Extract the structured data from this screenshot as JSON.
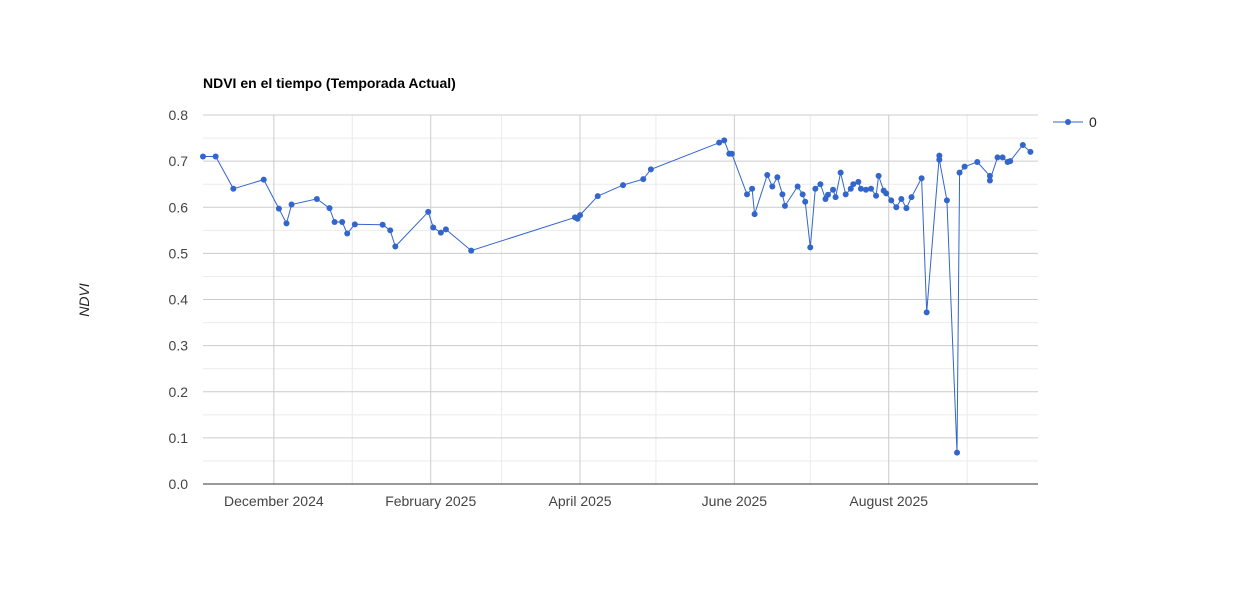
{
  "chart_data": {
    "type": "line",
    "title": "NDVI en el tiempo (Temporada Actual)",
    "xlabel": "",
    "ylabel": "NDVI",
    "ylim": [
      0,
      0.8
    ],
    "yticks": [
      "0.0",
      "0.1",
      "0.2",
      "0.3",
      "0.4",
      "0.5",
      "0.6",
      "0.7",
      "0.8"
    ],
    "xlim": [
      "2024-11-03",
      "2025-09-29"
    ],
    "xtick_labels": [
      {
        "date": "2024-12-01",
        "label": "December 2024"
      },
      {
        "date": "2025-02-01",
        "label": "February 2025"
      },
      {
        "date": "2025-04-01",
        "label": "April 2025"
      },
      {
        "date": "2025-06-01",
        "label": "June 2025"
      },
      {
        "date": "2025-08-01",
        "label": "August 2025"
      }
    ],
    "grid": true,
    "legend_position": "right",
    "color": "#3366cc",
    "series": [
      {
        "name": "0",
        "points": [
          [
            "2024-11-03",
            0.71
          ],
          [
            "2024-11-08",
            0.71
          ],
          [
            "2024-11-15",
            0.64
          ],
          [
            "2024-11-27",
            0.66
          ],
          [
            "2024-12-03",
            0.597
          ],
          [
            "2024-12-06",
            0.565
          ],
          [
            "2024-12-08",
            0.606
          ],
          [
            "2024-12-18",
            0.618
          ],
          [
            "2024-12-23",
            0.598
          ],
          [
            "2024-12-25",
            0.568
          ],
          [
            "2024-12-28",
            0.568
          ],
          [
            "2024-12-30",
            0.543
          ],
          [
            "2025-01-02",
            0.563
          ],
          [
            "2025-01-13",
            0.562
          ],
          [
            "2025-01-16",
            0.55
          ],
          [
            "2025-01-18",
            0.515
          ],
          [
            "2025-01-31",
            0.59
          ],
          [
            "2025-02-02",
            0.556
          ],
          [
            "2025-02-05",
            0.545
          ],
          [
            "2025-02-07",
            0.552
          ],
          [
            "2025-02-17",
            0.506
          ],
          [
            "2025-03-30",
            0.578
          ],
          [
            "2025-03-31",
            0.575
          ],
          [
            "2025-04-01",
            0.583
          ],
          [
            "2025-04-08",
            0.624
          ],
          [
            "2025-04-18",
            0.648
          ],
          [
            "2025-04-26",
            0.661
          ],
          [
            "2025-04-29",
            0.682
          ],
          [
            "2025-05-26",
            0.74
          ],
          [
            "2025-05-28",
            0.745
          ],
          [
            "2025-05-30",
            0.716
          ],
          [
            "2025-05-31",
            0.716
          ],
          [
            "2025-06-06",
            0.628
          ],
          [
            "2025-06-08",
            0.64
          ],
          [
            "2025-06-09",
            0.585
          ],
          [
            "2025-06-14",
            0.67
          ],
          [
            "2025-06-16",
            0.645
          ],
          [
            "2025-06-18",
            0.665
          ],
          [
            "2025-06-20",
            0.628
          ],
          [
            "2025-06-21",
            0.603
          ],
          [
            "2025-06-26",
            0.645
          ],
          [
            "2025-06-28",
            0.628
          ],
          [
            "2025-06-29",
            0.612
          ],
          [
            "2025-07-01",
            0.513
          ],
          [
            "2025-07-03",
            0.64
          ],
          [
            "2025-07-05",
            0.65
          ],
          [
            "2025-07-07",
            0.618
          ],
          [
            "2025-07-08",
            0.627
          ],
          [
            "2025-07-10",
            0.638
          ],
          [
            "2025-07-11",
            0.622
          ],
          [
            "2025-07-13",
            0.675
          ],
          [
            "2025-07-15",
            0.628
          ],
          [
            "2025-07-17",
            0.64
          ],
          [
            "2025-07-18",
            0.65
          ],
          [
            "2025-07-20",
            0.655
          ],
          [
            "2025-07-21",
            0.64
          ],
          [
            "2025-07-23",
            0.638
          ],
          [
            "2025-07-25",
            0.64
          ],
          [
            "2025-07-27",
            0.625
          ],
          [
            "2025-07-28",
            0.668
          ],
          [
            "2025-07-30",
            0.636
          ],
          [
            "2025-07-31",
            0.63
          ],
          [
            "2025-08-02",
            0.615
          ],
          [
            "2025-08-04",
            0.6
          ],
          [
            "2025-08-06",
            0.618
          ],
          [
            "2025-08-08",
            0.598
          ],
          [
            "2025-08-10",
            0.622
          ],
          [
            "2025-08-14",
            0.663
          ],
          [
            "2025-08-16",
            0.372
          ],
          [
            "2025-08-21",
            0.712
          ],
          [
            "2025-08-21",
            0.703
          ],
          [
            "2025-08-24",
            0.615
          ],
          [
            "2025-08-28",
            0.068
          ],
          [
            "2025-08-29",
            0.675
          ],
          [
            "2025-08-31",
            0.688
          ],
          [
            "2025-09-05",
            0.698
          ],
          [
            "2025-09-10",
            0.668
          ],
          [
            "2025-09-10",
            0.658
          ],
          [
            "2025-09-13",
            0.708
          ],
          [
            "2025-09-15",
            0.708
          ],
          [
            "2025-09-17",
            0.698
          ],
          [
            "2025-09-18",
            0.7
          ],
          [
            "2025-09-23",
            0.735
          ],
          [
            "2025-09-26",
            0.72
          ]
        ]
      }
    ]
  }
}
